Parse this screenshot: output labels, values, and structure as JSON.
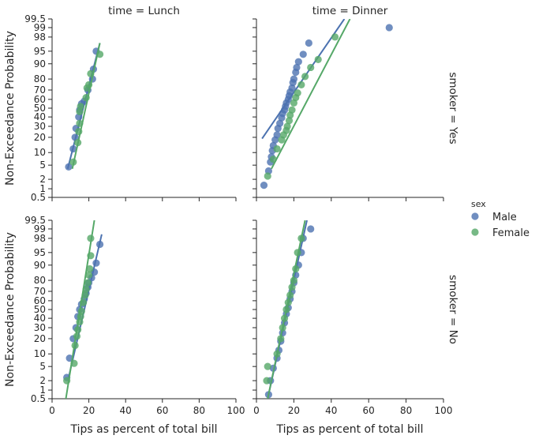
{
  "chart_data": {
    "type": "scatter",
    "title": "",
    "xlabel": "Tips as percent of total bill",
    "ylabel": "Non-Exceedance Probability",
    "xlim": [
      0,
      100
    ],
    "x_ticks": [
      0,
      20,
      40,
      60,
      80,
      100
    ],
    "y_scale": "probability",
    "y_ticks": [
      0.5,
      1,
      2,
      5,
      10,
      20,
      30,
      40,
      50,
      60,
      70,
      80,
      90,
      95,
      98,
      99,
      99.5
    ],
    "y_tick_labels": [
      "0.5",
      "1",
      "2",
      "5",
      "10",
      "20",
      "30",
      "40",
      "50",
      "60",
      "70",
      "80",
      "90",
      "95",
      "98",
      "99",
      "99.5"
    ],
    "ylim": [
      0.5,
      99.5
    ],
    "grid": false,
    "legend": {
      "title": "sex",
      "placement": "right",
      "entries": [
        {
          "label": "Male",
          "color": "#4c72b0"
        },
        {
          "label": "Female",
          "color": "#55a868"
        }
      ]
    },
    "panels": [
      {
        "col_title": "time = Lunch",
        "row_title": "smoker = Yes",
        "series": [
          {
            "name": "Male",
            "color": "#4c72b0",
            "points": [
              [
                9,
                4.5
              ],
              [
                11.5,
                12
              ],
              [
                12.5,
                20
              ],
              [
                13,
                28
              ],
              [
                14.5,
                40
              ],
              [
                15,
                48
              ],
              [
                16,
                55
              ],
              [
                17.5,
                58
              ],
              [
                19.5,
                70
              ],
              [
                22,
                80
              ],
              [
                22.5,
                87
              ],
              [
                24,
                95
              ]
            ],
            "fit": [
              [
                8.5,
                4
              ],
              [
                26,
                97
              ]
            ]
          },
          {
            "name": "Female",
            "color": "#55a868",
            "points": [
              [
                11.5,
                6
              ],
              [
                14,
                16
              ],
              [
                14.5,
                25
              ],
              [
                15,
                33
              ],
              [
                15,
                46
              ],
              [
                15.5,
                52
              ],
              [
                18.5,
                62
              ],
              [
                19,
                72
              ],
              [
                20,
                75
              ],
              [
                21,
                84
              ],
              [
                26,
                94
              ]
            ],
            "fit": [
              [
                11,
                4
              ],
              [
                26,
                97
              ]
            ]
          }
        ]
      },
      {
        "col_title": "time = Dinner",
        "row_title": "",
        "series": [
          {
            "name": "Male",
            "color": "#4c72b0",
            "points": [
              [
                4,
                1.3
              ],
              [
                6.5,
                3.5
              ],
              [
                7.5,
                6
              ],
              [
                8,
                8
              ],
              [
                8.5,
                11
              ],
              [
                9,
                14
              ],
              [
                10,
                18
              ],
              [
                11,
                22
              ],
              [
                11.5,
                28
              ],
              [
                12.5,
                33
              ],
              [
                13.5,
                39
              ],
              [
                14,
                44
              ],
              [
                15,
                48
              ],
              [
                15.5,
                52
              ],
              [
                16,
                56
              ],
              [
                17,
                60
              ],
              [
                17.5,
                64
              ],
              [
                18,
                68
              ],
              [
                19,
                72
              ],
              [
                19.5,
                77
              ],
              [
                20,
                80
              ],
              [
                21,
                85
              ],
              [
                21.5,
                88
              ],
              [
                22.5,
                91
              ],
              [
                25,
                94
              ],
              [
                28,
                97
              ],
              [
                71,
                99
              ]
            ],
            "fit": [
              [
                3,
                19
              ],
              [
                47,
                99.5
              ]
            ]
          },
          {
            "name": "Female",
            "color": "#55a868",
            "points": [
              [
                6,
                2.5
              ],
              [
                9,
                7
              ],
              [
                11,
                12
              ],
              [
                13.5,
                18
              ],
              [
                14.5,
                22
              ],
              [
                16,
                26
              ],
              [
                16.5,
                30
              ],
              [
                17.5,
                36
              ],
              [
                18,
                42
              ],
              [
                19,
                48
              ],
              [
                20,
                56
              ],
              [
                21,
                62
              ],
              [
                22,
                67
              ],
              [
                24,
                75
              ],
              [
                26,
                82
              ],
              [
                29,
                88
              ],
              [
                33,
                92
              ],
              [
                42,
                98
              ]
            ],
            "fit": [
              [
                8,
                4
              ],
              [
                50,
                99.5
              ]
            ]
          }
        ]
      },
      {
        "col_title": "",
        "row_title": "",
        "series": [
          {
            "name": "Male",
            "color": "#4c72b0",
            "points": [
              [
                8,
                2.5
              ],
              [
                9.5,
                8
              ],
              [
                11.5,
                20
              ],
              [
                13,
                30
              ],
              [
                14,
                42
              ],
              [
                15,
                50
              ],
              [
                16,
                56
              ],
              [
                17.5,
                62
              ],
              [
                18.5,
                68
              ],
              [
                19.5,
                74
              ],
              [
                20,
                78
              ],
              [
                21.5,
                82
              ],
              [
                23,
                86
              ],
              [
                24,
                91
              ],
              [
                26,
                97
              ]
            ],
            "fit": [
              [
                9,
                2.5
              ],
              [
                27,
                98.5
              ]
            ]
          },
          {
            "name": "Female",
            "color": "#55a868",
            "points": [
              [
                8,
                2
              ],
              [
                12,
                6
              ],
              [
                12.5,
                15
              ],
              [
                13.5,
                22
              ],
              [
                14,
                28
              ],
              [
                15,
                36
              ],
              [
                15.5,
                42
              ],
              [
                16,
                48
              ],
              [
                17,
                58
              ],
              [
                18,
                66
              ],
              [
                18.5,
                72
              ],
              [
                19.5,
                78
              ],
              [
                20,
                84
              ],
              [
                20.5,
                88
              ],
              [
                21,
                94
              ],
              [
                21,
                98
              ]
            ],
            "fit": [
              [
                7.5,
                0.5
              ],
              [
                23,
                99.5
              ]
            ]
          }
        ]
      },
      {
        "col_title": "",
        "row_title": "smoker = No",
        "series": [
          {
            "name": "Male",
            "color": "#4c72b0",
            "points": [
              [
                6.5,
                0.7
              ],
              [
                7.5,
                2
              ],
              [
                9,
                4.5
              ],
              [
                11,
                8
              ],
              [
                12,
                12
              ],
              [
                13,
                18
              ],
              [
                14,
                25
              ],
              [
                15,
                35
              ],
              [
                16,
                45
              ],
              [
                17,
                52
              ],
              [
                18,
                62
              ],
              [
                19,
                70
              ],
              [
                20,
                78
              ],
              [
                21,
                84
              ],
              [
                22.5,
                90
              ],
              [
                24,
                95
              ],
              [
                25,
                98
              ],
              [
                29,
                99
              ]
            ],
            "fit": [
              [
                6,
                0.5
              ],
              [
                27,
                99.5
              ]
            ]
          },
          {
            "name": "Female",
            "color": "#55a868",
            "points": [
              [
                5.5,
                2
              ],
              [
                6,
                5
              ],
              [
                11,
                10
              ],
              [
                13,
                20
              ],
              [
                14,
                30
              ],
              [
                15,
                40
              ],
              [
                16,
                50
              ],
              [
                17,
                58
              ],
              [
                18,
                66
              ],
              [
                19,
                74
              ],
              [
                20,
                80
              ],
              [
                21,
                88
              ],
              [
                22,
                95
              ],
              [
                24,
                98
              ]
            ],
            "fit": [
              [
                6,
                0.5
              ],
              [
                26,
                99.5
              ]
            ]
          }
        ]
      }
    ]
  }
}
